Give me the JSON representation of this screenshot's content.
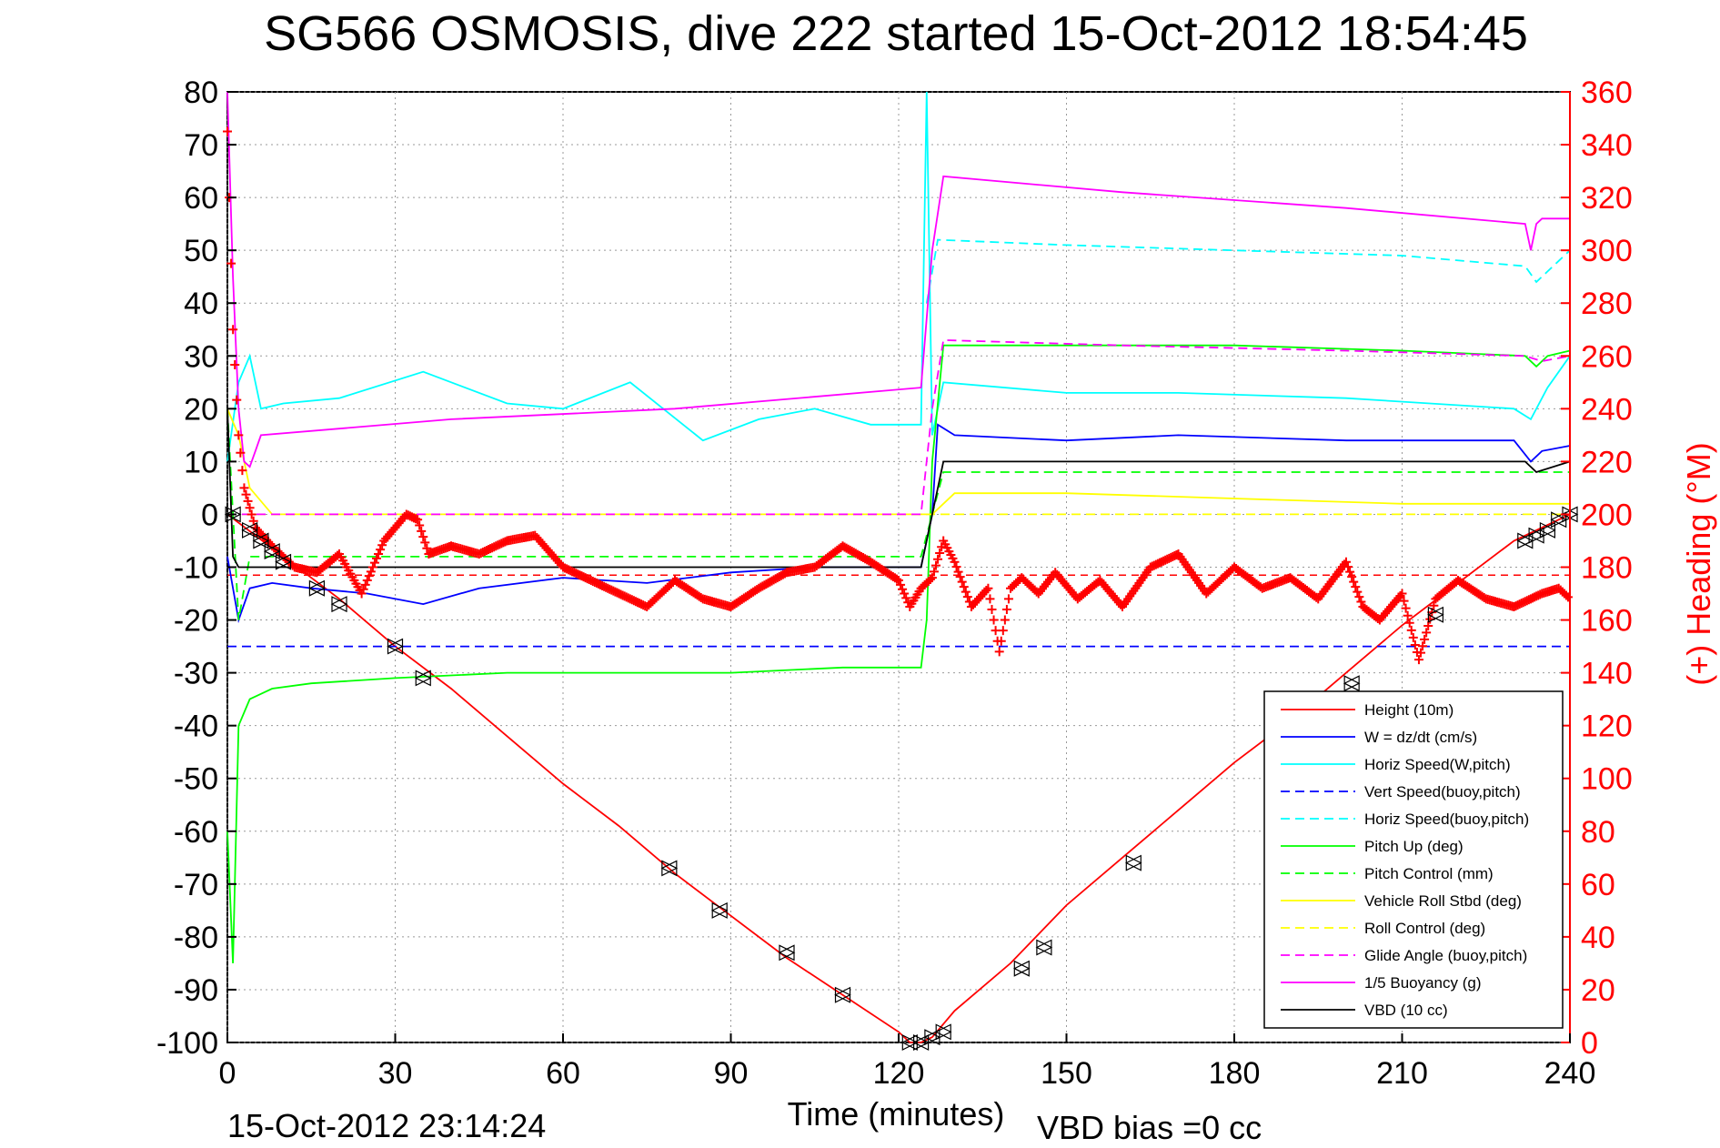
{
  "chart_data": {
    "type": "line",
    "title": "SG566 OSMOSIS, dive 222 started 15-Oct-2012 18:54:45",
    "xlabel": "Time (minutes)",
    "ylabel_right": "(+) Heading (°M)",
    "footer_left": "15-Oct-2012 23:14:24",
    "footer_right": "VBD bias =0 cc",
    "xlim": [
      0,
      240
    ],
    "ylim_left": [
      -100,
      80
    ],
    "ylim_right": [
      0,
      360
    ],
    "xticks": [
      0,
      30,
      60,
      90,
      120,
      150,
      180,
      210,
      240
    ],
    "yticks_left": [
      80,
      70,
      60,
      50,
      40,
      30,
      20,
      10,
      0,
      -10,
      -20,
      -30,
      -40,
      -50,
      -60,
      -70,
      -80,
      -90,
      -100
    ],
    "yticks_right": [
      360,
      340,
      320,
      300,
      280,
      260,
      240,
      220,
      200,
      180,
      160,
      140,
      120,
      100,
      80,
      60,
      40,
      20,
      0
    ],
    "grid": true,
    "legend_position": "lower-right",
    "colors": {
      "red": "#ff0000",
      "blue": "#0000ff",
      "cyan": "#00ffff",
      "green": "#00ff00",
      "yellow": "#ffff00",
      "magenta": "#ff00ff",
      "black": "#000000"
    },
    "series": [
      {
        "name": "Height (10m)",
        "color": "#ff0000",
        "dash": false,
        "x": [
          0,
          10,
          20,
          30,
          40,
          50,
          60,
          70,
          80,
          90,
          100,
          110,
          120,
          122,
          124,
          126,
          130,
          140,
          150,
          160,
          170,
          180,
          190,
          200,
          210,
          220,
          230,
          240
        ],
        "y": [
          0,
          -8,
          -16,
          -25,
          -33,
          -42,
          -51,
          -59,
          -68,
          -76,
          -84,
          -91,
          -98,
          -100,
          -100,
          -99,
          -94,
          -85,
          -74,
          -65,
          -56,
          -47,
          -39,
          -30,
          -21,
          -13,
          -5,
          0
        ]
      },
      {
        "name": "W = dz/dt (cm/s)",
        "color": "#0000ff",
        "dash": false,
        "x": [
          0,
          2,
          4,
          8,
          15,
          25,
          35,
          45,
          60,
          75,
          90,
          105,
          120,
          124,
          126,
          127,
          130,
          150,
          170,
          200,
          230,
          233,
          235,
          240
        ],
        "y": [
          -8,
          -20,
          -14,
          -13,
          -14,
          -15,
          -17,
          -14,
          -12,
          -13,
          -11,
          -10,
          -10,
          -10,
          0,
          17,
          15,
          14,
          15,
          14,
          14,
          10,
          12,
          13
        ]
      },
      {
        "name": "Horiz Speed(W,pitch)",
        "color": "#00ffff",
        "dash": false,
        "x": [
          0,
          2,
          4,
          6,
          10,
          20,
          35,
          50,
          60,
          72,
          85,
          95,
          105,
          115,
          124,
          125,
          126,
          128,
          150,
          170,
          200,
          230,
          233,
          236,
          240
        ],
        "y": [
          10,
          25,
          30,
          20,
          21,
          22,
          27,
          21,
          20,
          25,
          14,
          18,
          20,
          17,
          17,
          80,
          15,
          25,
          23,
          23,
          22,
          20,
          18,
          24,
          30
        ]
      },
      {
        "name": "Vert Speed(buoy,pitch)",
        "color": "#0000ff",
        "dash": true,
        "x": [
          0,
          2,
          5,
          10,
          120,
          124,
          126,
          240
        ],
        "y": [
          -25,
          -25,
          -25,
          -25,
          -25,
          -25,
          -25,
          -25
        ]
      },
      {
        "name": "Horiz Speed(buoy,pitch)",
        "color": "#00ffff",
        "dash": true,
        "x": [
          125,
          127,
          150,
          180,
          210,
          232,
          234,
          236,
          240
        ],
        "y": [
          40,
          52,
          51,
          50,
          49,
          47,
          44,
          46,
          50
        ]
      },
      {
        "name": "Pitch Up (deg)",
        "color": "#00ff00",
        "dash": false,
        "x": [
          0,
          1,
          2,
          4,
          8,
          15,
          30,
          50,
          70,
          90,
          110,
          124,
          125,
          126,
          128,
          150,
          180,
          210,
          232,
          234,
          236,
          240
        ],
        "y": [
          -60,
          -85,
          -40,
          -35,
          -33,
          -32,
          -31,
          -30,
          -30,
          -30,
          -29,
          -29,
          -20,
          10,
          32,
          32,
          32,
          31,
          30,
          28,
          30,
          31
        ]
      },
      {
        "name": "Pitch Control (mm)",
        "color": "#00ff00",
        "dash": true,
        "x": [
          0,
          2,
          4,
          8,
          124,
          126,
          128,
          130,
          240
        ],
        "y": [
          20,
          -20,
          -8,
          -8,
          -8,
          0,
          8,
          8,
          8
        ]
      },
      {
        "name": "Vehicle Roll Stbd (deg)",
        "color": "#ffff00",
        "dash": false,
        "x": [
          0,
          2,
          4,
          8,
          30,
          60,
          120,
          124,
          126,
          130,
          150,
          180,
          210,
          240
        ],
        "y": [
          20,
          15,
          5,
          0,
          0,
          0,
          0,
          0,
          0,
          4,
          4,
          3,
          2,
          2
        ]
      },
      {
        "name": "Roll Control (deg)",
        "color": "#ffff00",
        "dash": true,
        "x": [
          0,
          240
        ],
        "y": [
          0,
          0
        ]
      },
      {
        "name": "Glide Angle (buoy,pitch)",
        "color": "#ff00ff",
        "dash": true,
        "x": [
          0,
          124,
          126,
          128,
          160,
          200,
          232,
          235,
          240
        ],
        "y": [
          0,
          0,
          20,
          33,
          32,
          31,
          30,
          29,
          30
        ]
      },
      {
        "name": "1/5 Buoyancy (g)",
        "color": "#ff00ff",
        "dash": false,
        "x": [
          0,
          1,
          2,
          3,
          4,
          5,
          6,
          40,
          80,
          124,
          126,
          128,
          160,
          200,
          232,
          233,
          234,
          235,
          240
        ],
        "y": [
          80,
          45,
          20,
          10,
          9,
          12,
          15,
          18,
          20,
          24,
          50,
          64,
          61,
          58,
          55,
          50,
          55,
          56,
          56
        ]
      },
      {
        "name": "VBD (10 cc)",
        "color": "#000000",
        "dash": false,
        "x": [
          0,
          1,
          2,
          8,
          124,
          126,
          128,
          130,
          232,
          234,
          240
        ],
        "y": [
          20,
          -8,
          -10,
          -10,
          -10,
          0,
          10,
          10,
          10,
          8,
          10
        ]
      }
    ],
    "heading": {
      "name": "(+) Heading",
      "color": "#ff0000",
      "x": [
        0,
        1,
        2,
        3,
        5,
        8,
        12,
        16,
        20,
        24,
        28,
        32,
        34,
        36,
        40,
        45,
        50,
        55,
        60,
        65,
        70,
        75,
        80,
        85,
        90,
        95,
        100,
        105,
        110,
        115,
        120,
        122,
        124,
        126,
        128,
        130,
        133,
        136,
        138,
        140,
        142,
        145,
        148,
        152,
        156,
        160,
        165,
        170,
        175,
        180,
        185,
        190,
        195,
        200,
        203,
        206,
        210,
        213,
        216,
        220,
        225,
        230,
        235,
        238,
        240
      ],
      "y": [
        345,
        270,
        230,
        210,
        195,
        188,
        180,
        178,
        185,
        170,
        190,
        200,
        198,
        185,
        188,
        185,
        190,
        192,
        180,
        175,
        170,
        165,
        175,
        168,
        165,
        172,
        178,
        180,
        188,
        182,
        175,
        165,
        172,
        176,
        190,
        182,
        165,
        172,
        148,
        172,
        176,
        170,
        178,
        168,
        175,
        165,
        180,
        185,
        170,
        180,
        172,
        176,
        168,
        182,
        165,
        160,
        170,
        145,
        168,
        175,
        168,
        165,
        170,
        172,
        168
      ]
    },
    "markers": {
      "x": [
        1,
        4,
        6,
        8,
        10,
        16,
        20,
        30,
        35,
        79,
        88,
        100,
        110,
        122,
        124,
        126,
        128,
        142,
        146,
        162,
        201,
        216,
        232,
        234,
        236,
        238,
        240
      ],
      "y": [
        0,
        -3,
        -5,
        -7,
        -9,
        -14,
        -17,
        -25,
        -31,
        -67,
        -75,
        -83,
        -91,
        -100,
        -100,
        -99,
        -98,
        -86,
        -82,
        -66,
        -32,
        -19,
        -5,
        -4,
        -3,
        -1,
        0
      ]
    },
    "ref_lines": [
      {
        "series": "red-dash",
        "color": "#ff0000",
        "y": -11.5,
        "x0": 0,
        "x1": 240
      }
    ]
  }
}
